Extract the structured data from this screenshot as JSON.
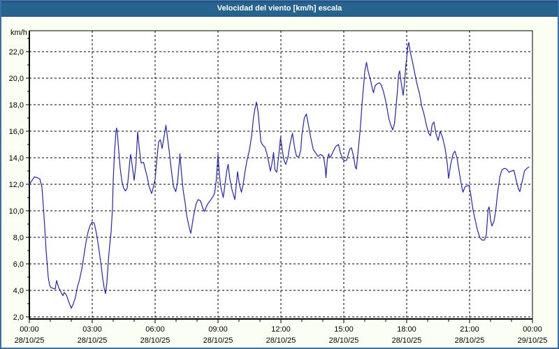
{
  "window": {
    "title": "Velocidad del viento [km/h] escala"
  },
  "colors": {
    "title_bar": "#26648f",
    "title_text": "#ffffff",
    "frame": "#3a6fa8",
    "page_bg": "#fbfef2",
    "plot_bg": "#ffffff",
    "grid": "#000000",
    "axis_text": "#000000",
    "line": "#2323be"
  },
  "chart_data": {
    "type": "line",
    "title": "Velocidad del viento [km/h] escala",
    "ylabel": "km/h",
    "xlabel": "",
    "grid": "dashed",
    "legend_position": "none",
    "ylim": [
      1.84,
      23.58
    ],
    "xlim_minutes": [
      0,
      1440
    ],
    "y_ticks": [
      {
        "value": 22,
        "label": "22,0"
      },
      {
        "value": 20,
        "label": "20,0"
      },
      {
        "value": 18,
        "label": "18,0"
      },
      {
        "value": 16,
        "label": "16,0"
      },
      {
        "value": 14,
        "label": "14,0"
      },
      {
        "value": 12,
        "label": "12,0"
      },
      {
        "value": 10,
        "label": "10,0"
      },
      {
        "value": 8,
        "label": "8,0"
      },
      {
        "value": 6,
        "label": "6,0"
      },
      {
        "value": 4,
        "label": "4,0"
      },
      {
        "value": 2,
        "label": "2,0"
      }
    ],
    "y_minor_ticks": [
      3,
      5,
      7,
      9,
      11,
      13,
      15,
      17,
      19,
      21,
      23
    ],
    "x_ticks": [
      {
        "minutes": 0,
        "time": "00:00",
        "date": "28/10/25"
      },
      {
        "minutes": 180,
        "time": "03:00",
        "date": "28/10/25"
      },
      {
        "minutes": 360,
        "time": "06:00",
        "date": "28/10/25"
      },
      {
        "minutes": 540,
        "time": "09:00",
        "date": "28/10/25"
      },
      {
        "minutes": 720,
        "time": "12:00",
        "date": "28/10/25"
      },
      {
        "minutes": 900,
        "time": "15:00",
        "date": "28/10/25"
      },
      {
        "minutes": 1080,
        "time": "18:00",
        "date": "28/10/25"
      },
      {
        "minutes": 1260,
        "time": "21:00",
        "date": "28/10/25"
      },
      {
        "minutes": 1440,
        "time": "00:00",
        "date": "29/10/25"
      }
    ],
    "x_minor_tick_every_minutes": 60,
    "series": [
      {
        "name": "velocidad-del-viento-kmh",
        "points": [
          [
            0,
            12.0
          ],
          [
            8,
            12.3
          ],
          [
            14,
            12.55
          ],
          [
            22,
            12.5
          ],
          [
            30,
            12.4
          ],
          [
            36,
            11.8
          ],
          [
            42,
            9.6
          ],
          [
            48,
            7.0
          ],
          [
            54,
            5.0
          ],
          [
            58,
            4.4
          ],
          [
            62,
            4.2
          ],
          [
            68,
            4.15
          ],
          [
            74,
            4.1
          ],
          [
            78,
            4.75
          ],
          [
            84,
            4.2
          ],
          [
            90,
            3.9
          ],
          [
            96,
            3.6
          ],
          [
            100,
            3.85
          ],
          [
            106,
            3.65
          ],
          [
            112,
            3.2
          ],
          [
            120,
            2.65
          ],
          [
            126,
            3.0
          ],
          [
            132,
            3.5
          ],
          [
            138,
            4.3
          ],
          [
            144,
            4.85
          ],
          [
            150,
            5.6
          ],
          [
            156,
            6.6
          ],
          [
            162,
            7.6
          ],
          [
            168,
            8.4
          ],
          [
            174,
            8.9
          ],
          [
            180,
            9.15
          ],
          [
            186,
            9.05
          ],
          [
            192,
            8.3
          ],
          [
            198,
            7.3
          ],
          [
            204,
            6.2
          ],
          [
            210,
            4.9
          ],
          [
            214,
            4.2
          ],
          [
            218,
            3.75
          ],
          [
            222,
            4.6
          ],
          [
            226,
            6.2
          ],
          [
            230,
            7.4
          ],
          [
            234,
            8.4
          ],
          [
            238,
            10.2
          ],
          [
            240,
            12.3
          ],
          [
            244,
            14.5
          ],
          [
            248,
            16.0
          ],
          [
            250,
            16.25
          ],
          [
            252,
            15.8
          ],
          [
            256,
            14.5
          ],
          [
            260,
            13.2
          ],
          [
            265,
            12.2
          ],
          [
            270,
            11.7
          ],
          [
            275,
            11.5
          ],
          [
            280,
            11.7
          ],
          [
            284,
            12.7
          ],
          [
            288,
            13.9
          ],
          [
            290,
            14.25
          ],
          [
            295,
            13.3
          ],
          [
            300,
            12.3
          ],
          [
            305,
            13.5
          ],
          [
            310,
            15.95
          ],
          [
            315,
            14.6
          ],
          [
            320,
            13.6
          ],
          [
            327,
            13.65
          ],
          [
            333,
            13.0
          ],
          [
            337,
            12.6
          ],
          [
            343,
            11.8
          ],
          [
            350,
            11.3
          ],
          [
            356,
            11.9
          ],
          [
            360,
            12.4
          ],
          [
            364,
            13.6
          ],
          [
            370,
            15.2
          ],
          [
            375,
            15.35
          ],
          [
            380,
            14.7
          ],
          [
            385,
            15.5
          ],
          [
            391,
            16.45
          ],
          [
            396,
            15.4
          ],
          [
            400,
            14.55
          ],
          [
            407,
            12.95
          ],
          [
            413,
            11.8
          ],
          [
            419,
            11.45
          ],
          [
            424,
            12.1
          ],
          [
            429,
            13.6
          ],
          [
            431,
            14.3
          ],
          [
            434,
            13.3
          ],
          [
            437,
            12.4
          ],
          [
            440,
            11.6
          ],
          [
            447,
            10.4
          ],
          [
            450,
            9.7
          ],
          [
            457,
            8.8
          ],
          [
            462,
            8.3
          ],
          [
            470,
            9.6
          ],
          [
            477,
            10.5
          ],
          [
            483,
            10.85
          ],
          [
            490,
            10.75
          ],
          [
            497,
            10.15
          ],
          [
            501,
            9.95
          ],
          [
            510,
            10.5
          ],
          [
            517,
            10.75
          ],
          [
            524,
            11.0
          ],
          [
            530,
            11.3
          ],
          [
            535,
            12.3
          ],
          [
            540,
            14.25
          ],
          [
            544,
            12.7
          ],
          [
            548,
            11.8
          ],
          [
            555,
            11.0
          ],
          [
            560,
            12.0
          ],
          [
            565,
            13.0
          ],
          [
            569,
            13.5
          ],
          [
            574,
            12.4
          ],
          [
            580,
            11.6
          ],
          [
            588,
            10.85
          ],
          [
            592,
            11.9
          ],
          [
            596,
            12.95
          ],
          [
            601,
            12.0
          ],
          [
            607,
            11.4
          ],
          [
            612,
            12.0
          ],
          [
            617,
            12.9
          ],
          [
            623,
            13.8
          ],
          [
            630,
            14.6
          ],
          [
            636,
            15.6
          ],
          [
            641,
            16.9
          ],
          [
            645,
            17.6
          ],
          [
            650,
            18.2
          ],
          [
            655,
            17.4
          ],
          [
            659,
            16.2
          ],
          [
            663,
            15.2
          ],
          [
            668,
            14.95
          ],
          [
            674,
            14.8
          ],
          [
            680,
            14.3
          ],
          [
            684,
            13.8
          ],
          [
            690,
            13.0
          ],
          [
            694,
            13.5
          ],
          [
            699,
            14.4
          ],
          [
            703,
            13.1
          ],
          [
            708,
            12.9
          ],
          [
            714,
            14.2
          ],
          [
            719,
            15.55
          ],
          [
            725,
            14.4
          ],
          [
            729,
            13.8
          ],
          [
            734,
            13.5
          ],
          [
            740,
            14.0
          ],
          [
            746,
            15.0
          ],
          [
            753,
            15.85
          ],
          [
            760,
            14.65
          ],
          [
            765,
            14.1
          ],
          [
            772,
            14.1
          ],
          [
            777,
            14.6
          ],
          [
            780,
            15.7
          ],
          [
            787,
            17.0
          ],
          [
            793,
            17.3
          ],
          [
            800,
            16.3
          ],
          [
            807,
            15.3
          ],
          [
            813,
            14.6
          ],
          [
            820,
            14.35
          ],
          [
            826,
            14.1
          ],
          [
            833,
            14.25
          ],
          [
            840,
            14.15
          ],
          [
            843,
            13.95
          ],
          [
            847,
            13.2
          ],
          [
            849,
            12.5
          ],
          [
            853,
            13.9
          ],
          [
            857,
            14.3
          ],
          [
            860,
            14.0
          ],
          [
            863,
            14.1
          ],
          [
            870,
            14.5
          ],
          [
            877,
            14.85
          ],
          [
            885,
            15.0
          ],
          [
            890,
            14.4
          ],
          [
            897,
            13.9
          ],
          [
            902,
            13.78
          ],
          [
            908,
            13.8
          ],
          [
            917,
            14.65
          ],
          [
            922,
            14.75
          ],
          [
            928,
            14.1
          ],
          [
            933,
            13.3
          ],
          [
            936,
            13.15
          ],
          [
            940,
            14.2
          ],
          [
            944,
            15.3
          ],
          [
            947,
            16.15
          ],
          [
            950,
            17.2
          ],
          [
            953,
            18.3
          ],
          [
            957,
            19.5
          ],
          [
            960,
            20.5
          ],
          [
            965,
            21.2
          ],
          [
            969,
            20.6
          ],
          [
            973,
            20.2
          ],
          [
            977,
            19.8
          ],
          [
            981,
            19.3
          ],
          [
            985,
            18.9
          ],
          [
            990,
            19.45
          ],
          [
            997,
            19.6
          ],
          [
            1002,
            19.65
          ],
          [
            1007,
            19.5
          ],
          [
            1013,
            19.05
          ],
          [
            1019,
            18.4
          ],
          [
            1024,
            17.7
          ],
          [
            1029,
            16.95
          ],
          [
            1034,
            16.5
          ],
          [
            1040,
            16.1
          ],
          [
            1045,
            16.55
          ],
          [
            1050,
            17.95
          ],
          [
            1054,
            19.2
          ],
          [
            1057,
            20.3
          ],
          [
            1060,
            20.55
          ],
          [
            1064,
            19.7
          ],
          [
            1070,
            18.7
          ],
          [
            1074,
            19.7
          ],
          [
            1077,
            20.8
          ],
          [
            1080,
            21.5
          ],
          [
            1083,
            22.35
          ],
          [
            1086,
            22.7
          ],
          [
            1090,
            22.0
          ],
          [
            1097,
            21.2
          ],
          [
            1103,
            20.4
          ],
          [
            1110,
            19.5
          ],
          [
            1117,
            18.8
          ],
          [
            1123,
            17.9
          ],
          [
            1130,
            17.25
          ],
          [
            1137,
            16.4
          ],
          [
            1143,
            15.85
          ],
          [
            1148,
            15.65
          ],
          [
            1153,
            16.5
          ],
          [
            1158,
            16.7
          ],
          [
            1164,
            15.8
          ],
          [
            1170,
            15.3
          ],
          [
            1176,
            16.0
          ],
          [
            1183,
            15.5
          ],
          [
            1190,
            14.7
          ],
          [
            1196,
            13.6
          ],
          [
            1200,
            12.45
          ],
          [
            1206,
            13.5
          ],
          [
            1213,
            14.3
          ],
          [
            1218,
            14.5
          ],
          [
            1224,
            14.0
          ],
          [
            1230,
            13.0
          ],
          [
            1237,
            11.9
          ],
          [
            1241,
            11.4
          ],
          [
            1247,
            11.8
          ],
          [
            1254,
            11.9
          ],
          [
            1258,
            11.95
          ],
          [
            1263,
            11.3
          ],
          [
            1270,
            10.05
          ],
          [
            1277,
            9.2
          ],
          [
            1283,
            8.5
          ],
          [
            1290,
            7.95
          ],
          [
            1297,
            7.78
          ],
          [
            1303,
            7.8
          ],
          [
            1308,
            8.2
          ],
          [
            1313,
            10.1
          ],
          [
            1316,
            10.3
          ],
          [
            1320,
            9.35
          ],
          [
            1324,
            8.85
          ],
          [
            1330,
            9.2
          ],
          [
            1335,
            10.05
          ],
          [
            1340,
            11.3
          ],
          [
            1347,
            12.6
          ],
          [
            1353,
            13.1
          ],
          [
            1360,
            13.2
          ],
          [
            1366,
            13.15
          ],
          [
            1373,
            12.9
          ],
          [
            1380,
            13.0
          ],
          [
            1387,
            13.05
          ],
          [
            1394,
            12.25
          ],
          [
            1400,
            11.65
          ],
          [
            1404,
            11.45
          ],
          [
            1410,
            12.15
          ],
          [
            1417,
            13.0
          ],
          [
            1424,
            13.2
          ],
          [
            1430,
            13.3
          ]
        ]
      }
    ]
  }
}
